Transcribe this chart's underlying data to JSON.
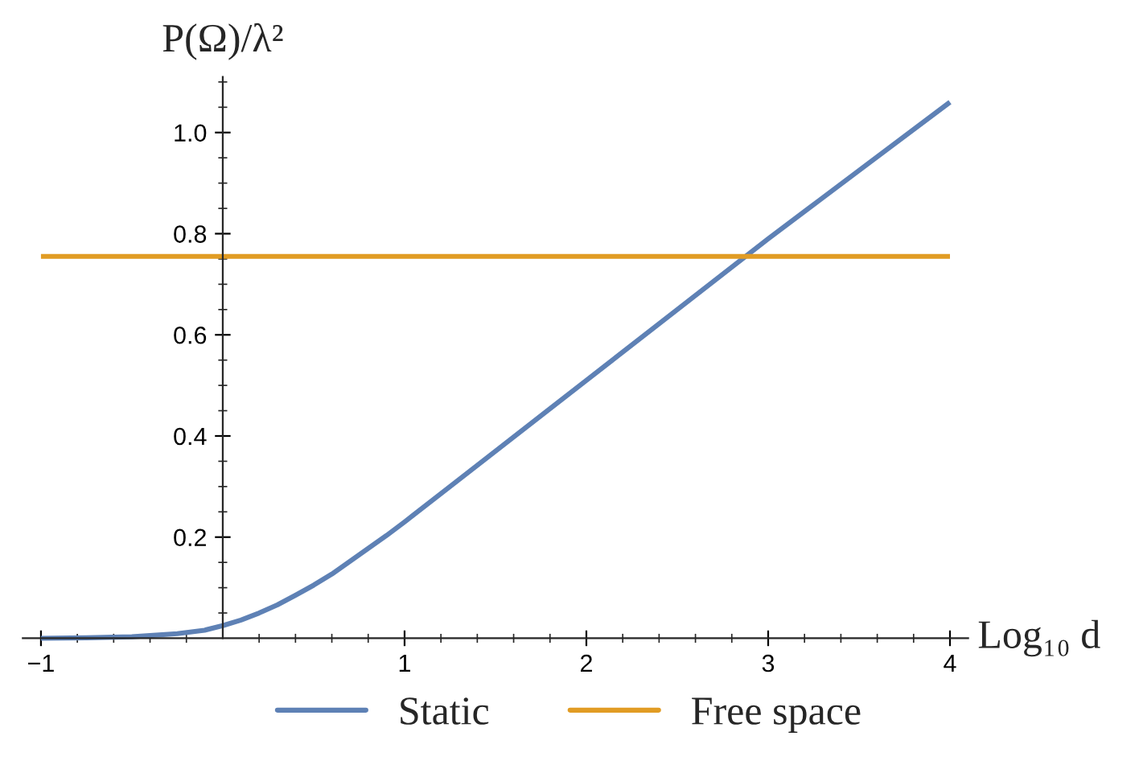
{
  "chart_data": {
    "type": "line",
    "xlabel": "Log₁₀ d",
    "ylabel": "P(Ω)/λ²",
    "series": [
      {
        "name": "Static",
        "color": "#5e81b5",
        "x": [
          -1,
          -0.75,
          -0.5,
          -0.25,
          -0.1,
          0,
          0.1,
          0.2,
          0.3,
          0.4,
          0.5,
          0.6,
          0.75,
          0.9,
          1,
          1.25,
          1.5,
          2,
          2.5,
          3,
          3.5,
          4
        ],
        "values": [
          0.0,
          0.001,
          0.003,
          0.009,
          0.016,
          0.025,
          0.036,
          0.05,
          0.066,
          0.085,
          0.105,
          0.127,
          0.165,
          0.203,
          0.23,
          0.3,
          0.37,
          0.51,
          0.65,
          0.79,
          0.925,
          1.06
        ]
      },
      {
        "name": "Free space",
        "color": "#e19c24",
        "x": [
          -1,
          4
        ],
        "values": [
          0.755,
          0.755
        ]
      }
    ],
    "xlim": [
      -1.1,
      4.1
    ],
    "ylim": [
      0,
      1.11
    ],
    "xticks": [
      {
        "value": -1,
        "label": "−1"
      },
      1,
      2,
      3,
      4,
      {
        "value": -0.8,
        "label": null
      },
      {
        "value": -0.6,
        "label": null
      },
      {
        "value": -0.4,
        "label": null
      },
      {
        "value": -0.2,
        "label": null
      },
      {
        "value": 0.2,
        "label": null
      },
      {
        "value": 0.4,
        "label": null
      },
      {
        "value": 0.6,
        "label": null
      },
      {
        "value": 0.8,
        "label": null
      },
      {
        "value": 1.2,
        "label": null
      },
      {
        "value": 1.4,
        "label": null
      },
      {
        "value": 1.6,
        "label": null
      },
      {
        "value": 1.8,
        "label": null
      },
      {
        "value": 2.2,
        "label": null
      },
      {
        "value": 2.4,
        "label": null
      },
      {
        "value": 2.6,
        "label": null
      },
      {
        "value": 2.8,
        "label": null
      },
      {
        "value": 3.2,
        "label": null
      },
      {
        "value": 3.4,
        "label": null
      },
      {
        "value": 3.6,
        "label": null
      },
      {
        "value": 3.8,
        "label": null
      }
    ],
    "yticks": [
      0.2,
      0.4,
      0.6,
      0.8,
      {
        "value": 1,
        "label": "1.0"
      },
      {
        "value": 0.05,
        "label": null
      },
      {
        "value": 0.1,
        "label": null
      },
      {
        "value": 0.15,
        "label": null
      },
      {
        "value": 0.25,
        "label": null
      },
      {
        "value": 0.3,
        "label": null
      },
      {
        "value": 0.35,
        "label": null
      },
      {
        "value": 0.45,
        "label": null
      },
      {
        "value": 0.5,
        "label": null
      },
      {
        "value": 0.55,
        "label": null
      },
      {
        "value": 0.65,
        "label": null
      },
      {
        "value": 0.7,
        "label": null
      },
      {
        "value": 0.75,
        "label": null
      },
      {
        "value": 0.85,
        "label": null
      },
      {
        "value": 0.9,
        "label": null
      },
      {
        "value": 0.95,
        "label": null
      },
      {
        "value": 1.05,
        "label": null
      },
      {
        "value": 1.1,
        "label": null
      }
    ],
    "grid": false,
    "legend": "bottom",
    "marker": "none",
    "line_style": "solid"
  }
}
